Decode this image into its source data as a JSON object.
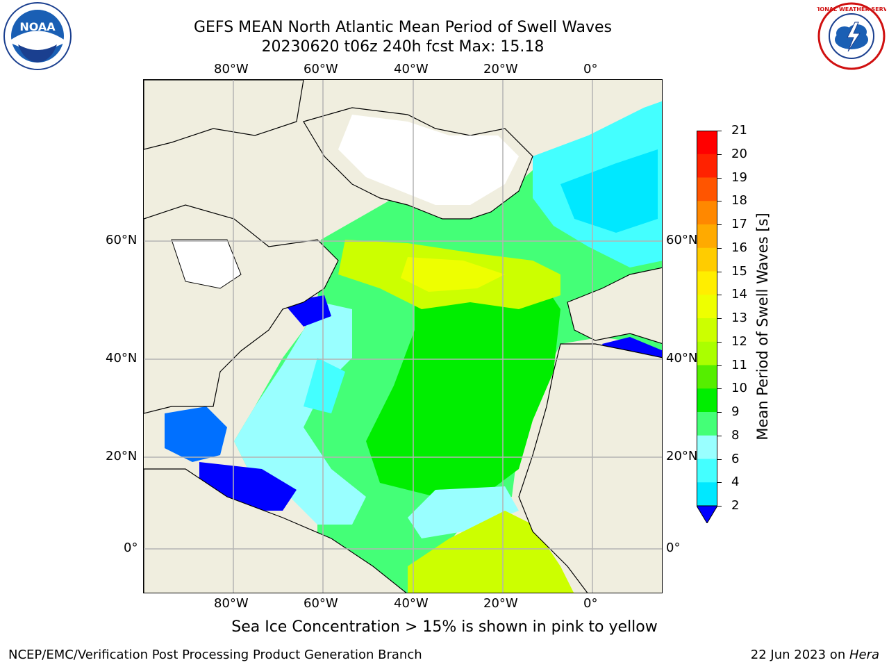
{
  "title": {
    "line1": "GEFS MEAN North Atlantic Mean Period of Swell Waves",
    "line2": "20230620 t06z 240h fcst   Max: 15.18"
  },
  "map": {
    "top_lon_labels": [
      "80°W",
      "60°W",
      "40°W",
      "20°W",
      "0°"
    ],
    "bottom_lon_labels": [
      "80°W",
      "60°W",
      "40°W",
      "20°W",
      "0°"
    ],
    "left_lat_labels": [
      "60°N",
      "40°N",
      "20°N",
      "0°"
    ],
    "right_lat_labels": [
      "60°N",
      "40°N",
      "20°N",
      "0°"
    ],
    "land_color": "#f0eedf",
    "grid_color": "#b4b4b4"
  },
  "colorbar": {
    "title": "Mean Period of Swell Waves [s]",
    "levels": [
      "2",
      "4",
      "6",
      "8",
      "9",
      "10",
      "11",
      "12",
      "13",
      "14",
      "15",
      "16",
      "17",
      "18",
      "19",
      "20",
      "21"
    ],
    "colors": [
      "#0000ff",
      "#0070ff",
      "#00e8ff",
      "#44ffff",
      "#99ffff",
      "#44ff77",
      "#00ee00",
      "#55ee00",
      "#aaff00",
      "#ccff00",
      "#eeff00",
      "#ffee00",
      "#ffcc00",
      "#ffaa00",
      "#ff8800",
      "#ff5500",
      "#ff2200",
      "#ff0000"
    ]
  },
  "footer": {
    "note": "Sea Ice Concentration > 15% is shown in pink to yellow",
    "credit": "NCEP/EMC/Verification Post Processing Product Generation Branch",
    "date": "22 Jun 2023 on ",
    "host": "Hera"
  },
  "logos": {
    "left": "noara-logo",
    "left_text": "NOAA",
    "right": "nws-logo",
    "right_text": "NATIONAL WEATHER SERVICE"
  }
}
